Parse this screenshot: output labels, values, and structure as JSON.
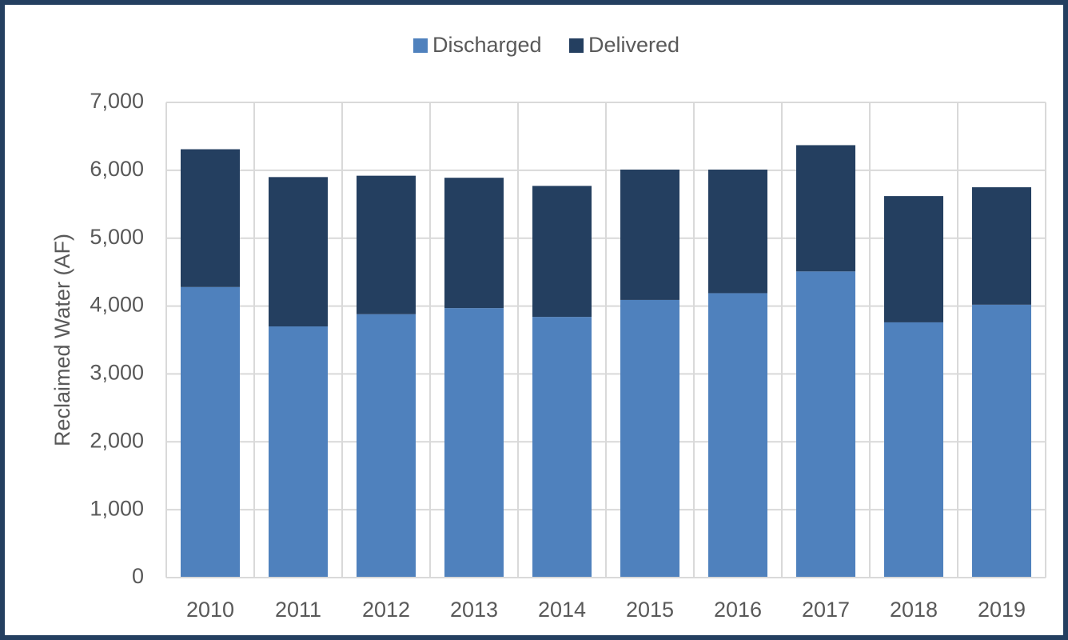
{
  "chart_data": {
    "type": "stacked_bar",
    "y_label": "Reclaimed Water (AF)",
    "categories": [
      "2010",
      "2011",
      "2012",
      "2013",
      "2014",
      "2015",
      "2016",
      "2017",
      "2018",
      "2019"
    ],
    "series": [
      {
        "name": "Discharged",
        "color": "#4f81bd",
        "values": [
          4280,
          3700,
          3880,
          3970,
          3840,
          4090,
          4190,
          4510,
          3760,
          4020
        ]
      },
      {
        "name": "Delivered",
        "color": "#243f60",
        "values": [
          2030,
          2200,
          2040,
          1920,
          1930,
          1920,
          1820,
          1860,
          1860,
          1730
        ]
      }
    ],
    "ylim": [
      0,
      7000
    ],
    "yticks": [
      0,
      {
        "value": 1000,
        "label": "1,000"
      },
      {
        "value": 2000,
        "label": "2,000"
      },
      {
        "value": 3000,
        "label": "3,000"
      },
      {
        "value": 4000,
        "label": "4,000"
      },
      {
        "value": 5000,
        "label": "5,000"
      },
      {
        "value": 6000,
        "label": "6,000"
      },
      {
        "value": 7000,
        "label": "7,000"
      }
    ],
    "grid": true,
    "legend": "top"
  }
}
